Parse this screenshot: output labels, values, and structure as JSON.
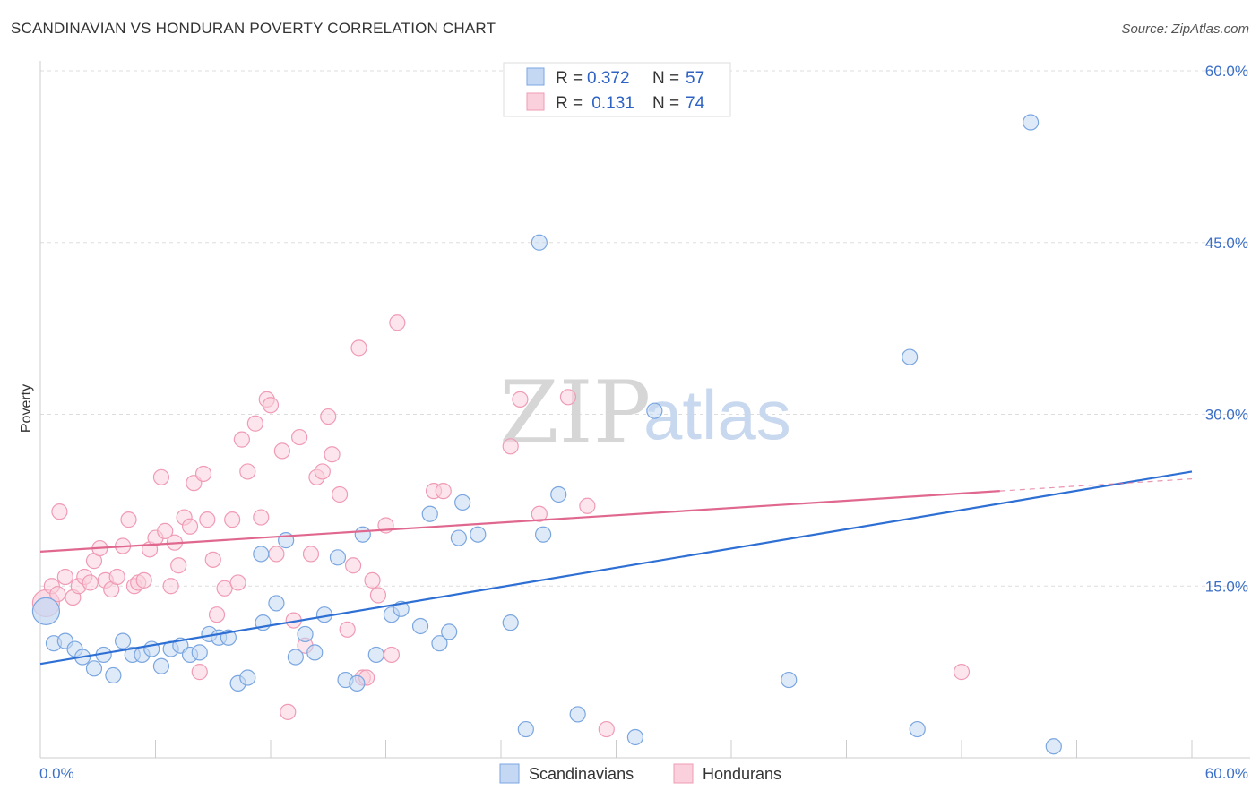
{
  "header": {
    "title": "SCANDINAVIAN VS HONDURAN POVERTY CORRELATION CHART",
    "source": "Source: ZipAtlas.com"
  },
  "watermark": {
    "zip": "ZIP",
    "atlas": "atlas"
  },
  "legend": {
    "rows": [
      {
        "r_label": "R = ",
        "r_value": "0.372",
        "n_label": "N = ",
        "n_value": "57",
        "color": "#7aa6e0"
      },
      {
        "r_label": "R = ",
        "r_value": " 0.131",
        "n_label": "N = ",
        "n_value": "74",
        "color": "#f09bb5"
      }
    ]
  },
  "bottom_legend": [
    {
      "label": "Scandinavians",
      "color": "#7aa6e0"
    },
    {
      "label": "Hondurans",
      "color": "#f09bb5"
    }
  ],
  "chart_data": {
    "type": "scatter",
    "ylabel": "Poverty",
    "xlim": [
      0,
      60
    ],
    "ylim": [
      0,
      60
    ],
    "x_tick_labels": [
      "0.0%",
      "60.0%"
    ],
    "y_ticks": [
      15,
      30,
      45,
      60
    ],
    "y_tick_labels": [
      "15.0%",
      "30.0%",
      "45.0%",
      "60.0%"
    ],
    "grid": "horizontal dashed",
    "legend_position": "top-center",
    "series": [
      {
        "name": "Scandinavians",
        "color": "#7aa6e0",
        "line_color": "#2e6fd4",
        "trend": {
          "x": [
            0,
            60
          ],
          "y": [
            8.2,
            25.0
          ]
        },
        "points": [
          [
            0.3,
            12.8
          ],
          [
            0.7,
            10.0
          ],
          [
            1.3,
            10.2
          ],
          [
            1.8,
            9.5
          ],
          [
            2.2,
            8.8
          ],
          [
            2.8,
            7.8
          ],
          [
            3.3,
            9.0
          ],
          [
            3.8,
            7.2
          ],
          [
            4.3,
            10.2
          ],
          [
            4.8,
            9.0
          ],
          [
            5.3,
            9.0
          ],
          [
            5.8,
            9.5
          ],
          [
            6.3,
            8.0
          ],
          [
            6.8,
            9.5
          ],
          [
            7.3,
            9.8
          ],
          [
            7.8,
            9.0
          ],
          [
            8.3,
            9.2
          ],
          [
            8.8,
            10.8
          ],
          [
            9.3,
            10.5
          ],
          [
            9.8,
            10.5
          ],
          [
            10.3,
            6.5
          ],
          [
            10.8,
            7.0
          ],
          [
            11.5,
            17.8
          ],
          [
            11.6,
            11.8
          ],
          [
            12.3,
            13.5
          ],
          [
            12.8,
            19.0
          ],
          [
            13.3,
            8.8
          ],
          [
            13.8,
            10.8
          ],
          [
            14.3,
            9.2
          ],
          [
            14.8,
            12.5
          ],
          [
            15.5,
            17.5
          ],
          [
            15.9,
            6.8
          ],
          [
            16.5,
            6.5
          ],
          [
            16.8,
            19.5
          ],
          [
            17.5,
            9.0
          ],
          [
            18.3,
            12.5
          ],
          [
            18.8,
            13.0
          ],
          [
            19.8,
            11.5
          ],
          [
            20.3,
            21.3
          ],
          [
            20.8,
            10.0
          ],
          [
            21.3,
            11.0
          ],
          [
            21.8,
            19.2
          ],
          [
            22.0,
            22.3
          ],
          [
            22.8,
            19.5
          ],
          [
            24.5,
            11.8
          ],
          [
            25.3,
            2.5
          ],
          [
            26.0,
            45.0
          ],
          [
            26.2,
            19.5
          ],
          [
            27.0,
            23.0
          ],
          [
            28.0,
            3.8
          ],
          [
            31.0,
            1.8
          ],
          [
            32.0,
            30.3
          ],
          [
            39.0,
            6.8
          ],
          [
            45.3,
            35.0
          ],
          [
            45.7,
            2.5
          ],
          [
            51.6,
            55.5
          ],
          [
            52.8,
            1.0
          ]
        ]
      },
      {
        "name": "Hondurans",
        "color": "#f09bb5",
        "line_color": "#e0688f",
        "trend": {
          "x": [
            0,
            50
          ],
          "y": [
            18.0,
            23.3
          ]
        },
        "points": [
          [
            0.3,
            13.5
          ],
          [
            0.6,
            15.0
          ],
          [
            0.9,
            14.3
          ],
          [
            1.3,
            15.8
          ],
          [
            1.7,
            14.0
          ],
          [
            2.0,
            15.0
          ],
          [
            2.3,
            15.8
          ],
          [
            2.6,
            15.3
          ],
          [
            2.8,
            17.2
          ],
          [
            3.1,
            18.3
          ],
          [
            3.4,
            15.5
          ],
          [
            3.7,
            14.7
          ],
          [
            4.0,
            15.8
          ],
          [
            4.3,
            18.5
          ],
          [
            4.6,
            20.8
          ],
          [
            4.9,
            15.0
          ],
          [
            5.1,
            15.3
          ],
          [
            5.4,
            15.5
          ],
          [
            5.7,
            18.2
          ],
          [
            6.0,
            19.2
          ],
          [
            6.3,
            24.5
          ],
          [
            6.5,
            19.8
          ],
          [
            6.8,
            15.0
          ],
          [
            7.0,
            18.8
          ],
          [
            7.2,
            16.8
          ],
          [
            7.5,
            21.0
          ],
          [
            7.8,
            20.2
          ],
          [
            8.0,
            24.0
          ],
          [
            8.3,
            7.5
          ],
          [
            8.5,
            24.8
          ],
          [
            8.7,
            20.8
          ],
          [
            9.0,
            17.3
          ],
          [
            9.2,
            12.5
          ],
          [
            9.6,
            14.8
          ],
          [
            10.0,
            20.8
          ],
          [
            10.3,
            15.3
          ],
          [
            10.5,
            27.8
          ],
          [
            10.8,
            25.0
          ],
          [
            11.2,
            29.2
          ],
          [
            11.5,
            21.0
          ],
          [
            11.8,
            31.3
          ],
          [
            12.0,
            30.8
          ],
          [
            12.3,
            17.8
          ],
          [
            12.6,
            26.8
          ],
          [
            12.9,
            4.0
          ],
          [
            13.2,
            12.0
          ],
          [
            13.5,
            28.0
          ],
          [
            13.8,
            9.8
          ],
          [
            14.1,
            17.8
          ],
          [
            14.4,
            24.5
          ],
          [
            14.7,
            25.0
          ],
          [
            15.0,
            29.8
          ],
          [
            15.2,
            26.5
          ],
          [
            15.6,
            23.0
          ],
          [
            16.0,
            11.2
          ],
          [
            16.3,
            16.8
          ],
          [
            16.6,
            35.8
          ],
          [
            16.8,
            7.0
          ],
          [
            17.0,
            7.0
          ],
          [
            17.3,
            15.5
          ],
          [
            17.6,
            14.2
          ],
          [
            18.0,
            20.3
          ],
          [
            18.3,
            9.0
          ],
          [
            18.6,
            38.0
          ],
          [
            20.5,
            23.3
          ],
          [
            21.0,
            23.3
          ],
          [
            24.5,
            27.2
          ],
          [
            25.0,
            31.3
          ],
          [
            26.0,
            21.3
          ],
          [
            27.5,
            31.5
          ],
          [
            28.5,
            22.0
          ],
          [
            29.5,
            2.5
          ],
          [
            48.0,
            7.5
          ],
          [
            1.0,
            21.5
          ]
        ]
      }
    ]
  }
}
